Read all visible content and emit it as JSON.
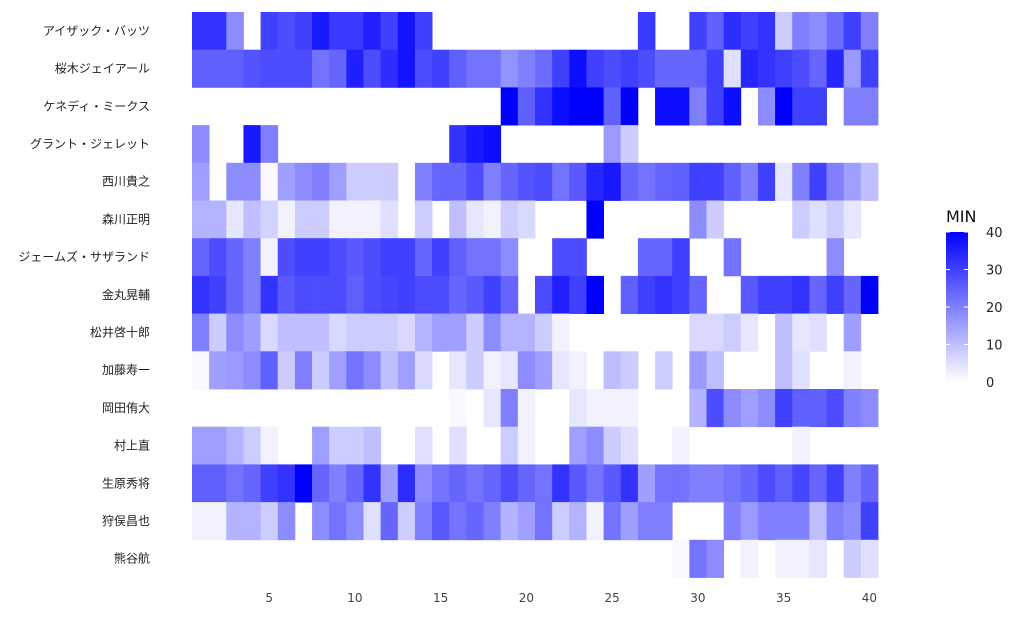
{
  "chart_data": {
    "type": "heatmap",
    "title": "",
    "xlabel": "",
    "ylabel": "",
    "x": [
      1,
      2,
      3,
      4,
      5,
      6,
      7,
      8,
      9,
      10,
      11,
      12,
      13,
      14,
      15,
      16,
      17,
      18,
      19,
      20,
      21,
      22,
      23,
      24,
      25,
      26,
      27,
      28,
      29,
      30,
      31,
      32,
      33,
      34,
      35,
      36,
      37,
      38,
      39,
      40
    ],
    "x_ticks": [
      5,
      10,
      15,
      20,
      25,
      30,
      35,
      40
    ],
    "rows": [
      "アイザック・バッツ",
      "桜木ジェイアール",
      "ケネディ・ミークス",
      "グラント・ジェレット",
      "西川貴之",
      "森川正明",
      "ジェームズ・サザランド",
      "金丸晃輔",
      "松井啓十郎",
      "加藤寿一",
      "岡田侑大",
      "村上直",
      "生原秀将",
      "狩俣昌也",
      "熊谷航"
    ],
    "values": [
      [
        32,
        32,
        18,
        null,
        30,
        28,
        30,
        36,
        31,
        31,
        35,
        30,
        37,
        30,
        null,
        null,
        null,
        null,
        null,
        null,
        null,
        null,
        null,
        null,
        null,
        null,
        31,
        null,
        null,
        30,
        25,
        33,
        30,
        32,
        8,
        20,
        18,
        23,
        30,
        20
      ],
      [
        25,
        25,
        25,
        27,
        28,
        28,
        28,
        22,
        24,
        35,
        28,
        33,
        37,
        28,
        30,
        25,
        22,
        22,
        17,
        20,
        23,
        30,
        38,
        30,
        28,
        30,
        28,
        24,
        24,
        24,
        30,
        5,
        34,
        32,
        30,
        28,
        24,
        34,
        16,
        30
      ],
      [
        null,
        null,
        null,
        null,
        null,
        null,
        null,
        null,
        null,
        null,
        null,
        null,
        null,
        null,
        null,
        null,
        null,
        null,
        40,
        25,
        32,
        38,
        40,
        40,
        25,
        40,
        null,
        38,
        38,
        20,
        30,
        38,
        null,
        18,
        40,
        30,
        30,
        null,
        20,
        20
      ],
      [
        18,
        null,
        null,
        36,
        20,
        null,
        null,
        null,
        null,
        null,
        null,
        null,
        null,
        null,
        null,
        32,
        36,
        38,
        null,
        null,
        null,
        null,
        null,
        null,
        16,
        8,
        null,
        null,
        null,
        null,
        null,
        null,
        null,
        null,
        null,
        null,
        null,
        null,
        null,
        null
      ],
      [
        15,
        null,
        18,
        18,
        1,
        15,
        18,
        20,
        15,
        8,
        8,
        8,
        null,
        20,
        24,
        24,
        28,
        20,
        24,
        27,
        28,
        22,
        26,
        34,
        36,
        24,
        22,
        24,
        25,
        30,
        30,
        25,
        20,
        30,
        4,
        20,
        30,
        20,
        15,
        10
      ],
      [
        12,
        12,
        4,
        10,
        7,
        2,
        8,
        8,
        2,
        2,
        2,
        5,
        null,
        8,
        null,
        10,
        4,
        2,
        8,
        6,
        null,
        null,
        null,
        40,
        null,
        null,
        null,
        null,
        null,
        18,
        8,
        null,
        null,
        null,
        null,
        8,
        5,
        8,
        4,
        null
      ],
      [
        24,
        28,
        24,
        20,
        2,
        28,
        30,
        30,
        28,
        26,
        28,
        30,
        30,
        24,
        30,
        25,
        22,
        22,
        18,
        null,
        null,
        28,
        28,
        null,
        null,
        null,
        24,
        24,
        30,
        null,
        null,
        22,
        null,
        null,
        null,
        null,
        null,
        18,
        null,
        null
      ],
      [
        32,
        30,
        24,
        20,
        32,
        26,
        28,
        28,
        28,
        25,
        28,
        29,
        30,
        28,
        28,
        24,
        26,
        30,
        24,
        null,
        28,
        35,
        30,
        40,
        null,
        25,
        30,
        32,
        30,
        24,
        null,
        null,
        26,
        30,
        30,
        32,
        24,
        30,
        24,
        40
      ],
      [
        20,
        8,
        18,
        15,
        6,
        10,
        10,
        10,
        6,
        8,
        8,
        8,
        6,
        12,
        15,
        15,
        8,
        18,
        12,
        12,
        8,
        2,
        null,
        null,
        null,
        null,
        null,
        null,
        null,
        6,
        6,
        8,
        4,
        null,
        10,
        4,
        5,
        null,
        15,
        null
      ],
      [
        1,
        15,
        16,
        18,
        25,
        8,
        20,
        8,
        15,
        22,
        18,
        10,
        15,
        6,
        null,
        4,
        8,
        2,
        4,
        18,
        15,
        4,
        2,
        null,
        10,
        8,
        null,
        8,
        null,
        16,
        10,
        null,
        null,
        null,
        10,
        5,
        null,
        null,
        2,
        null
      ],
      [
        null,
        null,
        null,
        null,
        null,
        null,
        null,
        null,
        null,
        null,
        null,
        null,
        null,
        null,
        null,
        1,
        null,
        4,
        20,
        2,
        null,
        null,
        4,
        2,
        2,
        2,
        null,
        null,
        null,
        12,
        28,
        18,
        15,
        18,
        30,
        25,
        25,
        28,
        20,
        18
      ],
      [
        15,
        15,
        12,
        8,
        2,
        null,
        null,
        15,
        8,
        8,
        10,
        null,
        null,
        5,
        null,
        5,
        null,
        null,
        8,
        2,
        null,
        null,
        15,
        18,
        8,
        5,
        null,
        null,
        2,
        null,
        null,
        null,
        null,
        null,
        null,
        2,
        null,
        null,
        null,
        null
      ],
      [
        25,
        25,
        22,
        24,
        30,
        32,
        40,
        24,
        20,
        24,
        32,
        15,
        33,
        18,
        22,
        24,
        22,
        24,
        28,
        24,
        22,
        32,
        26,
        22,
        26,
        32,
        15,
        22,
        22,
        20,
        20,
        22,
        24,
        28,
        25,
        29,
        24,
        30,
        20,
        24
      ],
      [
        2,
        2,
        12,
        12,
        8,
        18,
        null,
        18,
        22,
        18,
        5,
        24,
        8,
        20,
        26,
        22,
        24,
        20,
        12,
        15,
        22,
        8,
        12,
        2,
        22,
        15,
        20,
        20,
        null,
        null,
        null,
        20,
        16,
        20,
        20,
        20,
        10,
        20,
        18,
        30
      ],
      [
        null,
        null,
        null,
        null,
        null,
        null,
        null,
        null,
        null,
        null,
        null,
        null,
        null,
        null,
        null,
        null,
        null,
        null,
        null,
        null,
        null,
        null,
        null,
        null,
        null,
        null,
        null,
        null,
        1,
        22,
        18,
        null,
        2,
        null,
        2,
        2,
        4,
        null,
        8,
        5
      ]
    ],
    "legend": {
      "title": "MIN",
      "ticks": [
        0,
        10,
        20,
        30,
        40
      ],
      "range": [
        0,
        40
      ],
      "placement": "right"
    },
    "colors": {
      "low": "#ffffff",
      "high": "#0000ff"
    },
    "grid": false
  }
}
